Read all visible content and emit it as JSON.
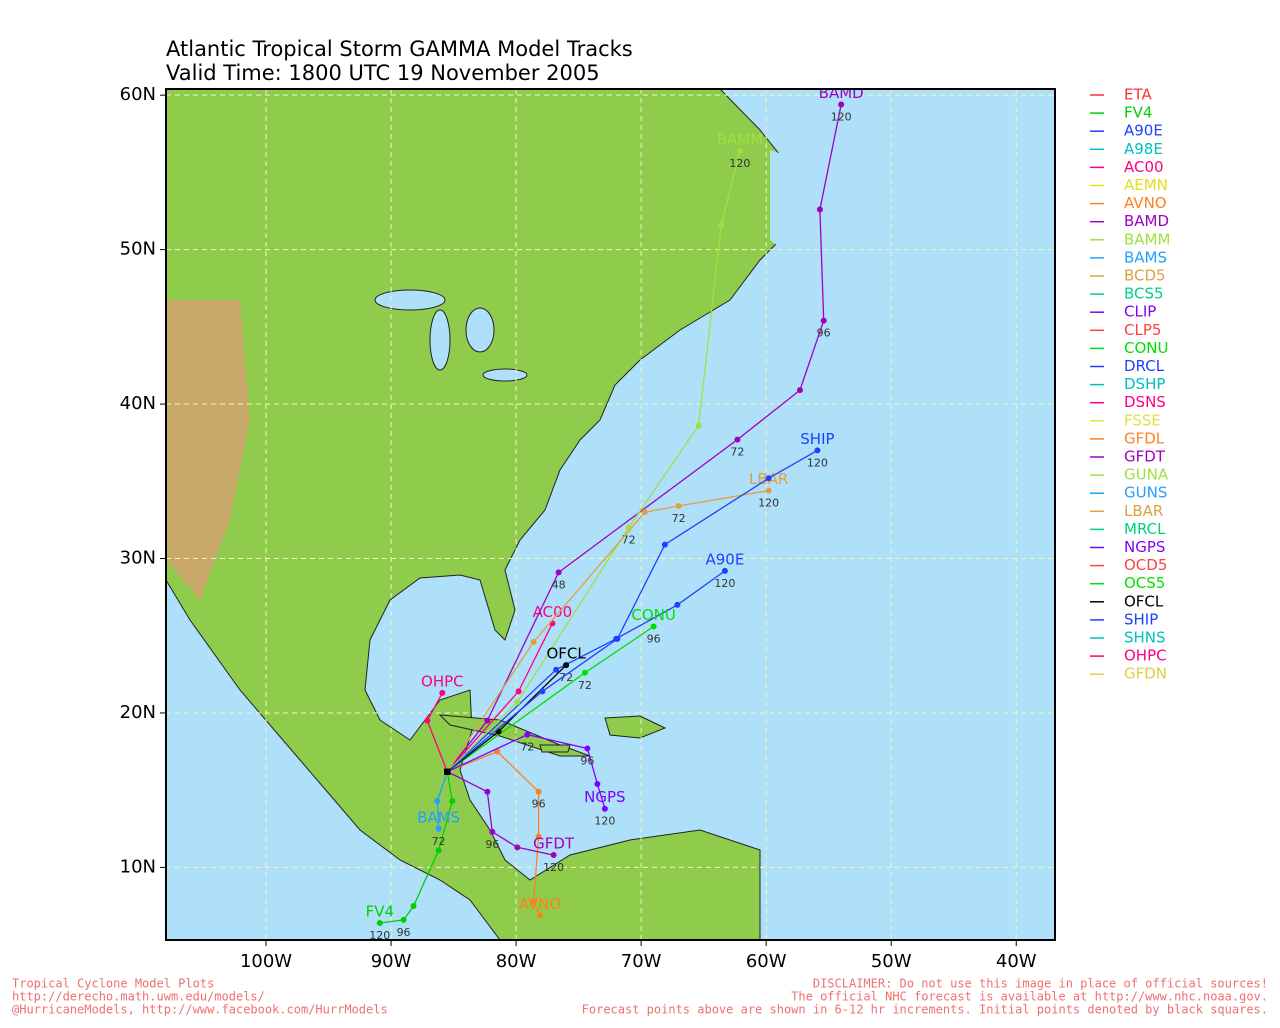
{
  "chart_data": {
    "type": "track-map",
    "title": "Atlantic Tropical Storm GAMMA Model Tracks",
    "subtitle": "Valid Time: 1800 UTC 19 November 2005",
    "xlim": [
      -108,
      -36.9
    ],
    "ylim": [
      5.3,
      60.4
    ],
    "xticks": [
      {
        "value": -100,
        "label": "100W"
      },
      {
        "value": -90,
        "label": "90W"
      },
      {
        "value": -80,
        "label": "80W"
      },
      {
        "value": -70,
        "label": "70W"
      },
      {
        "value": -60,
        "label": "60W"
      },
      {
        "value": -50,
        "label": "50W"
      },
      {
        "value": -40,
        "label": "40W"
      }
    ],
    "yticks": [
      {
        "value": 10,
        "label": "10N"
      },
      {
        "value": 20,
        "label": "20N"
      },
      {
        "value": 30,
        "label": "30N"
      },
      {
        "value": 40,
        "label": "40N"
      },
      {
        "value": 50,
        "label": "50N"
      },
      {
        "value": 60,
        "label": "60N"
      }
    ],
    "grid": true,
    "series": [
      {
        "name": "ETA",
        "color": "#ff3030"
      },
      {
        "name": "FV4",
        "color": "#00d000",
        "lon": [
          -85.5,
          -85.1,
          -86.2,
          -88.2,
          -89.0,
          -90.9
        ],
        "lat": [
          16.2,
          14.3,
          11.1,
          7.5,
          6.6,
          6.4
        ],
        "point_labels": [
          null,
          null,
          null,
          null,
          "96",
          "120"
        ]
      },
      {
        "name": "A90E",
        "color": "#2040ff",
        "lon": [
          -85.5,
          -76.8,
          -72.0,
          -67.1,
          -63.3
        ],
        "lat": [
          16.2,
          22.8,
          24.8,
          27.0,
          29.2
        ],
        "point_labels": [
          null,
          null,
          null,
          null,
          "120"
        ]
      },
      {
        "name": "A98E",
        "color": "#00c0c0"
      },
      {
        "name": "AC00",
        "color": "#ff0080",
        "lon": [
          -85.5,
          -79.8,
          -77.1
        ],
        "lat": [
          16.2,
          21.4,
          25.8
        ],
        "point_labels": [
          null,
          null,
          null
        ]
      },
      {
        "name": "AEMN",
        "color": "#e0e020"
      },
      {
        "name": "AVNO",
        "color": "#ff8020",
        "lon": [
          -85.5,
          -81.5,
          -78.2,
          -78.2,
          -78.6,
          -78.1
        ],
        "lat": [
          16.2,
          17.5,
          14.9,
          12.0,
          7.8,
          6.9
        ],
        "point_labels": [
          null,
          null,
          "96",
          null,
          null,
          null
        ]
      },
      {
        "name": "BAMD",
        "color": "#a000c0",
        "lon": [
          -85.5,
          -82.3,
          -76.6,
          -62.3,
          -57.3,
          -55.4,
          -55.7,
          -54.0
        ],
        "lat": [
          16.2,
          19.5,
          29.1,
          37.7,
          40.9,
          45.4,
          52.6,
          59.4
        ],
        "point_labels": [
          null,
          null,
          "48",
          "72",
          null,
          "96",
          null,
          "120"
        ]
      },
      {
        "name": "BAMM",
        "color": "#a0e040",
        "lon": [
          -85.5,
          -79.9,
          -71.0,
          -65.4,
          -63.6,
          -62.1
        ],
        "lat": [
          16.2,
          20.7,
          32.0,
          38.6,
          51.6,
          56.4
        ],
        "point_labels": [
          null,
          null,
          "72",
          null,
          null,
          "120"
        ]
      },
      {
        "name": "BAMS",
        "color": "#20a0ff",
        "lon": [
          -85.5,
          -86.3,
          -86.2
        ],
        "lat": [
          16.2,
          14.3,
          12.5
        ],
        "point_labels": [
          null,
          null,
          "72"
        ]
      },
      {
        "name": "BCD5",
        "color": "#e0a040"
      },
      {
        "name": "BCS5",
        "color": "#00d080"
      },
      {
        "name": "CLIP",
        "color": "#8000ff"
      },
      {
        "name": "CLP5",
        "color": "#ff4040"
      },
      {
        "name": "CONU",
        "color": "#00e000",
        "lon": [
          -85.5,
          -74.5,
          -69.0
        ],
        "lat": [
          16.2,
          22.6,
          25.6
        ],
        "point_labels": [
          null,
          "72",
          "96"
        ]
      },
      {
        "name": "DRCL",
        "color": "#2040ff"
      },
      {
        "name": "DSHP",
        "color": "#00c0c0"
      },
      {
        "name": "DSNS",
        "color": "#ff0080"
      },
      {
        "name": "FSSE",
        "color": "#e0e040"
      },
      {
        "name": "GFDL",
        "color": "#ff8020"
      },
      {
        "name": "GFDT",
        "color": "#a000c0",
        "lon": [
          -85.5,
          -82.3,
          -81.9,
          -79.9,
          -77.0
        ],
        "lat": [
          16.2,
          14.9,
          12.3,
          11.3,
          10.8
        ],
        "point_labels": [
          null,
          null,
          "96",
          null,
          "120"
        ]
      },
      {
        "name": "GUNA",
        "color": "#a0e040"
      },
      {
        "name": "GUNS",
        "color": "#20a0ff"
      },
      {
        "name": "LBAR",
        "color": "#e0a040",
        "lon": [
          -85.5,
          -78.6,
          -69.7,
          -67.0,
          -59.8
        ],
        "lat": [
          16.2,
          24.6,
          33.0,
          33.4,
          34.4
        ],
        "point_labels": [
          null,
          null,
          null,
          "72",
          "120"
        ]
      },
      {
        "name": "MRCL",
        "color": "#00d080"
      },
      {
        "name": "NGPS",
        "color": "#8000ff",
        "lon": [
          -85.5,
          -79.1,
          -74.3,
          -73.5,
          -72.9
        ],
        "lat": [
          16.2,
          18.6,
          17.7,
          15.4,
          13.8
        ],
        "point_labels": [
          null,
          "72",
          "96",
          null,
          "120"
        ]
      },
      {
        "name": "OCD5",
        "color": "#ff4040"
      },
      {
        "name": "OCS5",
        "color": "#00e000"
      },
      {
        "name": "OFCL",
        "color": "#000000",
        "lon": [
          -85.5,
          -81.4,
          -76.0
        ],
        "lat": [
          16.2,
          18.8,
          23.1
        ],
        "point_labels": [
          null,
          null,
          "72"
        ]
      },
      {
        "name": "SHIP",
        "color": "#2040ff",
        "lon": [
          -85.5,
          -77.9,
          -71.9,
          -68.1,
          -59.8,
          -55.9
        ],
        "lat": [
          16.2,
          21.4,
          24.8,
          30.9,
          35.2,
          37.0
        ],
        "point_labels": [
          null,
          null,
          null,
          null,
          null,
          "120"
        ]
      },
      {
        "name": "SHNS",
        "color": "#00c0c0"
      },
      {
        "name": "OHPC",
        "color": "#ff0080",
        "lon": [
          -85.5,
          -87.1,
          -85.9
        ],
        "lat": [
          16.2,
          19.5,
          21.3
        ],
        "point_labels": [
          null,
          null,
          null
        ]
      },
      {
        "name": "GFDN",
        "color": "#e0d040"
      }
    ]
  },
  "footer": {
    "left": [
      "Tropical Cyclone Model Plots",
      "http://derecho.math.uwm.edu/models/",
      "@HurricaneModels, http://www.facebook.com/HurrModels"
    ],
    "right": [
      "DISCLAIMER: Do not use this image in place of official sources!",
      "The official NHC forecast is available at http://www.nhc.noaa.gov.",
      "Forecast points above are shown in 6-12 hr increments. Initial points denoted by black squares."
    ]
  }
}
